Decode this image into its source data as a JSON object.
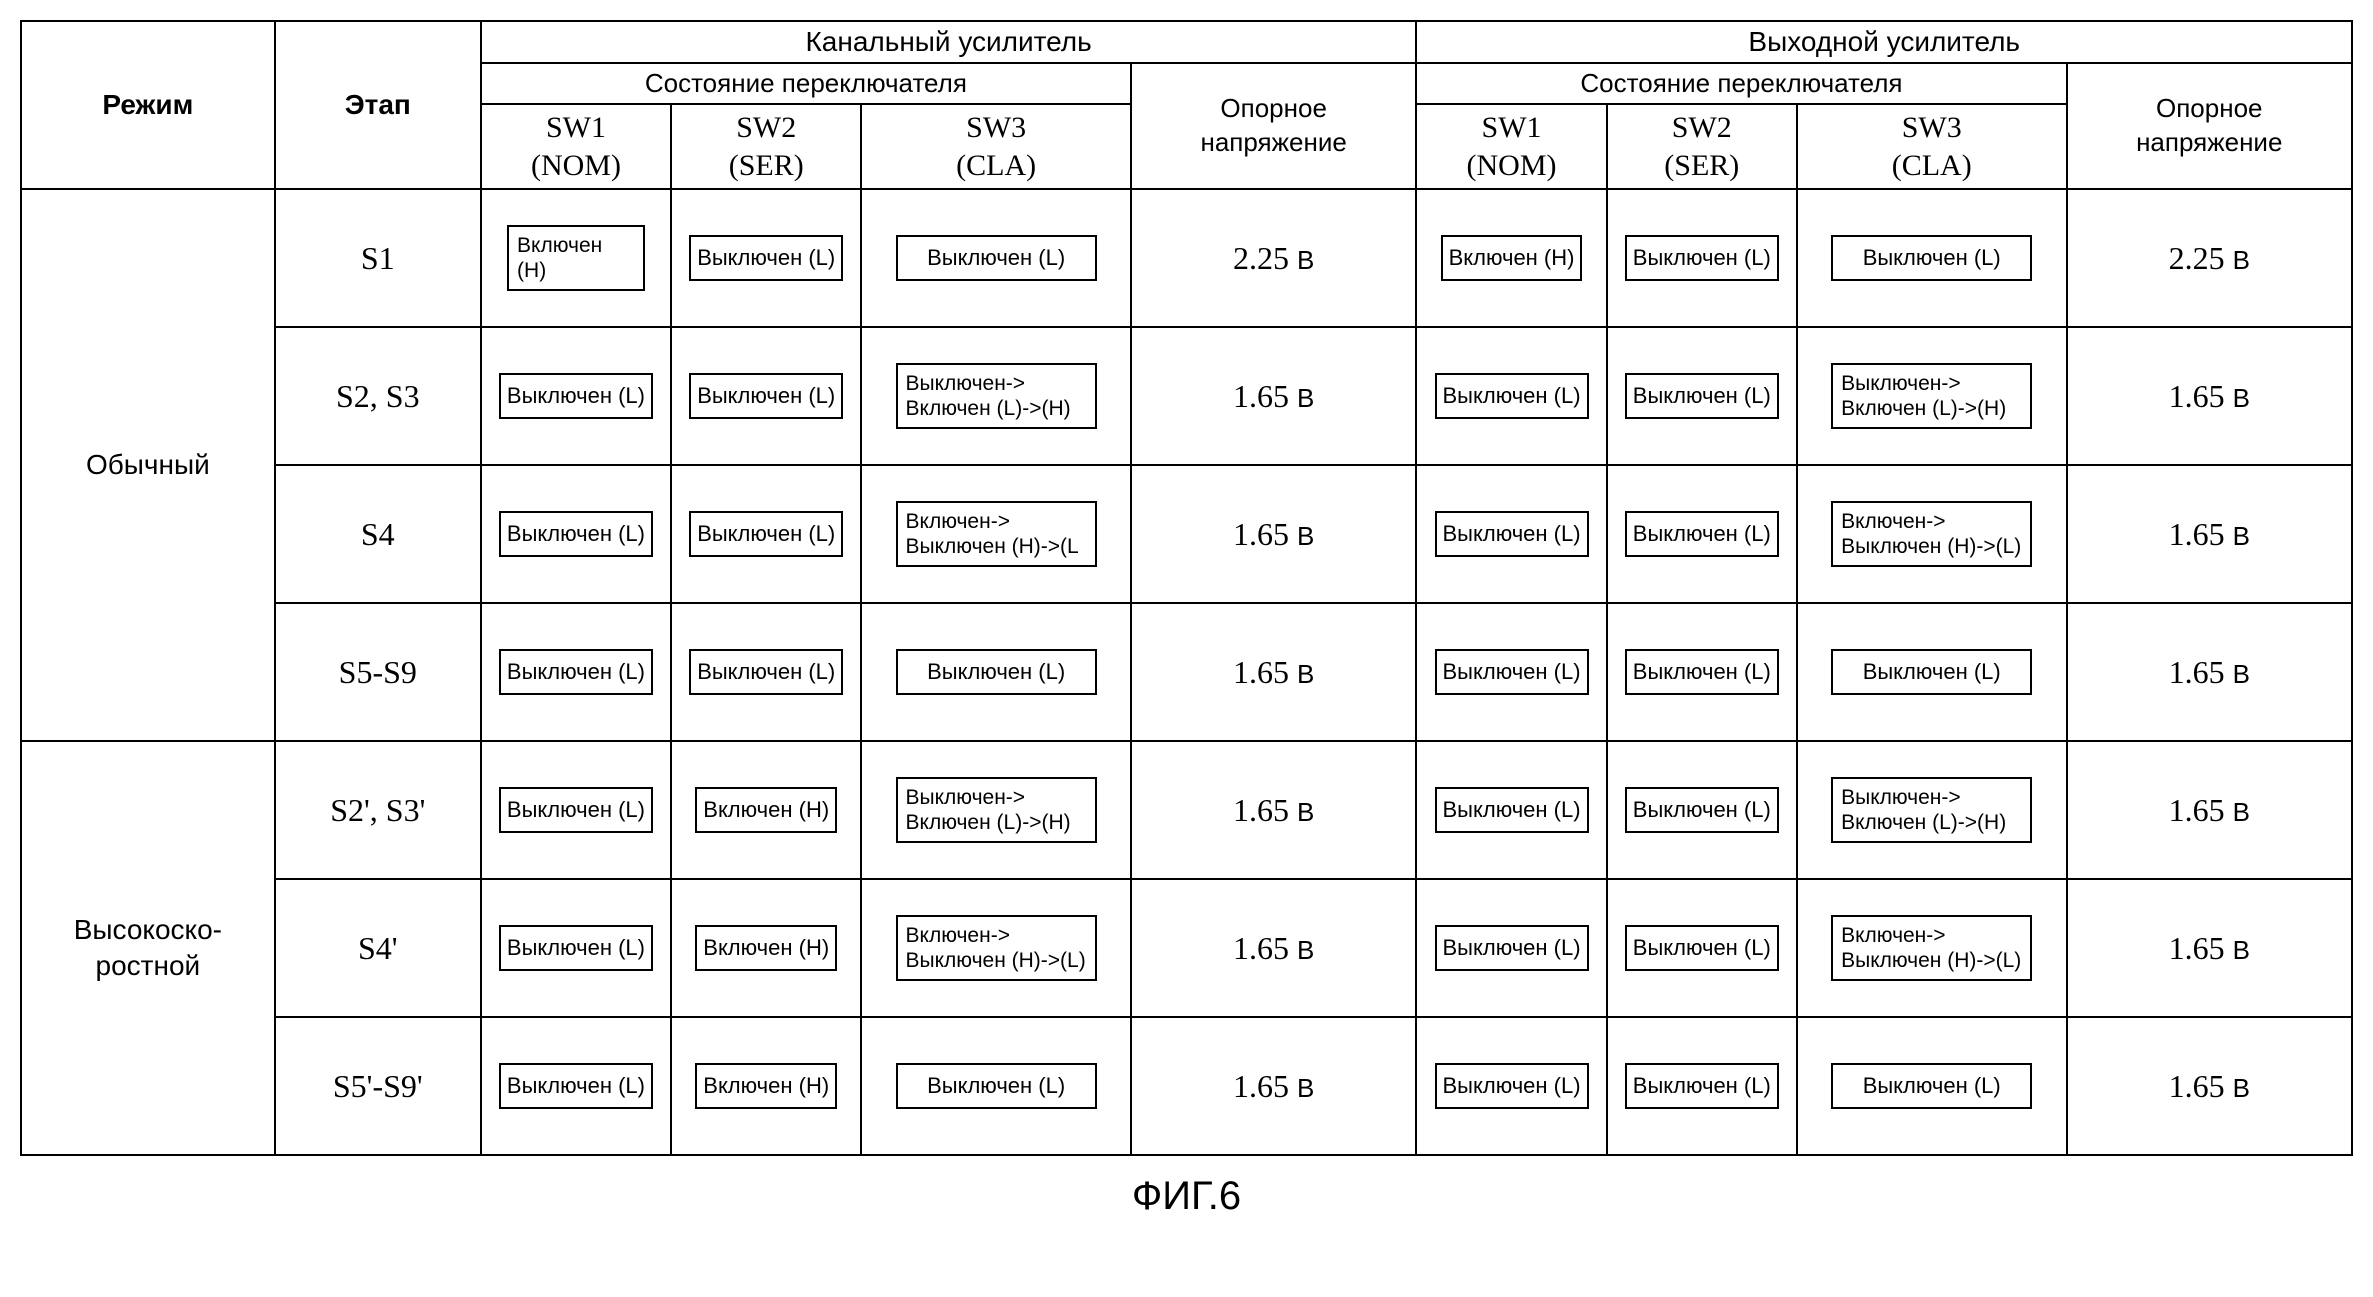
{
  "caption": "ФИГ.6",
  "headers": {
    "mode": "Режим",
    "stage": "Этап",
    "amp_channel": "Канальный усилитель",
    "amp_output": "Выходной усилитель",
    "sw_state": "Состояние переключателя",
    "ref_voltage_line1": "Опорное",
    "ref_voltage_line2": "напряжение",
    "sw1_line1": "SW1",
    "sw1_line2": "(NOM)",
    "sw2_line1": "SW2",
    "sw2_line2": "(SER)",
    "sw3_line1": "SW3",
    "sw3_line2": "(CLA)"
  },
  "modes": {
    "normal": "Обычный",
    "highspeed_line1": "Высокоско-",
    "highspeed_line2": "ростной"
  },
  "colwidths": {
    "mode": 160,
    "stage": 130,
    "sw1": 120,
    "sw2": 120,
    "sw3": 170,
    "ref": 180
  },
  "ref_unit": "В",
  "rows": [
    {
      "stage": "S1",
      "ch": {
        "sw1": "Включен\n(H)",
        "sw2": "Выключен (L)",
        "sw3": "Выключен (L)",
        "ref": "2.25"
      },
      "out": {
        "sw1": "Включен (H)",
        "sw2": "Выключен (L)",
        "sw3": "Выключен (L)",
        "ref": "2.25"
      }
    },
    {
      "stage": "S2, S3",
      "ch": {
        "sw1": "Выключен (L)",
        "sw2": "Выключен (L)",
        "sw3": "Выключен->\nВключен (L)->(H)",
        "ref": "1.65"
      },
      "out": {
        "sw1": "Выключен (L)",
        "sw2": "Выключен (L)",
        "sw3": "Выключен->\nВключен (L)->(H)",
        "ref": "1.65"
      }
    },
    {
      "stage": "S4",
      "ch": {
        "sw1": "Выключен (L)",
        "sw2": "Выключен (L)",
        "sw3": "Включен->\nВыключен (H)->(L",
        "ref": "1.65"
      },
      "out": {
        "sw1": "Выключен (L)",
        "sw2": "Выключен (L)",
        "sw3": "Включен->\nВыключен (H)->(L)",
        "ref": "1.65"
      }
    },
    {
      "stage": "S5-S9",
      "ch": {
        "sw1": "Выключен (L)",
        "sw2": "Выключен (L)",
        "sw3": "Выключен (L)",
        "ref": "1.65"
      },
      "out": {
        "sw1": "Выключен (L)",
        "sw2": "Выключен (L)",
        "sw3": "Выключен (L)",
        "ref": "1.65"
      }
    },
    {
      "stage": "S2', S3'",
      "ch": {
        "sw1": "Выключен (L)",
        "sw2": "Включен (H)",
        "sw3": "Выключен->\nВключен (L)->(H)",
        "ref": "1.65"
      },
      "out": {
        "sw1": "Выключен (L)",
        "sw2": "Выключен (L)",
        "sw3": "Выключен->\nВключен (L)->(H)",
        "ref": "1.65"
      }
    },
    {
      "stage": "S4'",
      "ch": {
        "sw1": "Выключен (L)",
        "sw2": "Включен (H)",
        "sw3": "Включен->\nВыключен (H)->(L)",
        "ref": "1.65"
      },
      "out": {
        "sw1": "Выключен (L)",
        "sw2": "Выключен (L)",
        "sw3": "Включен->\nВыключен (H)->(L)",
        "ref": "1.65"
      }
    },
    {
      "stage": "S5'-S9'",
      "ch": {
        "sw1": "Выключен (L)",
        "sw2": "Включен (H)",
        "sw3": "Выключен (L)",
        "ref": "1.65"
      },
      "out": {
        "sw1": "Выключен (L)",
        "sw2": "Выключен (L)",
        "sw3": "Выключен (L)",
        "ref": "1.65"
      }
    }
  ]
}
